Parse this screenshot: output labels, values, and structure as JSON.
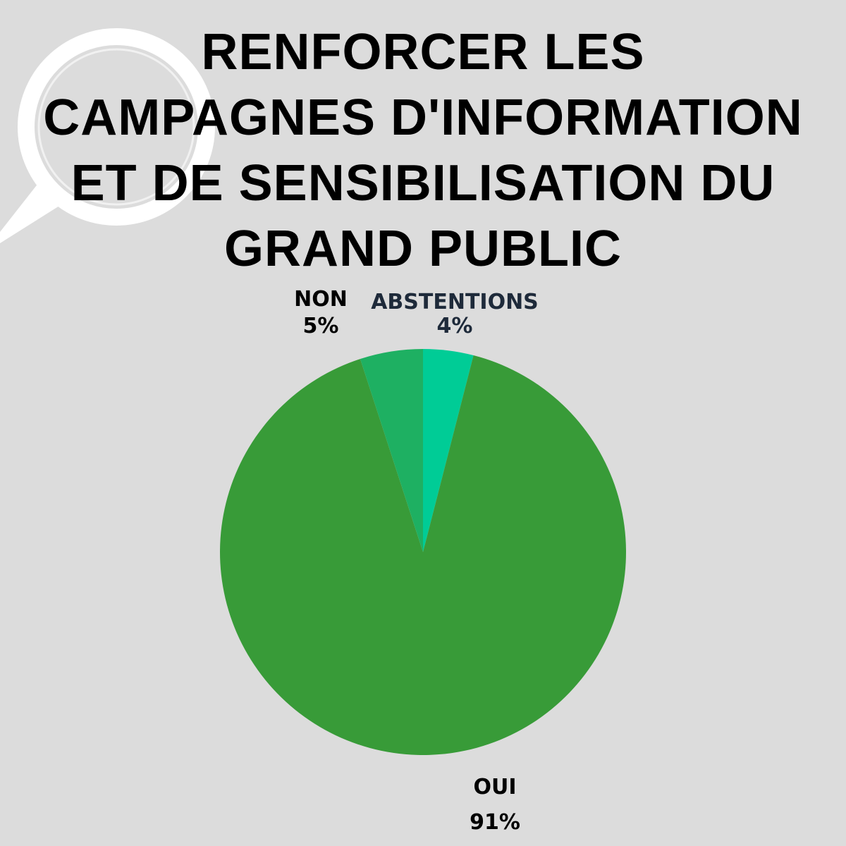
{
  "page": {
    "background": "#dcdcdc",
    "decoration_icon": "magnifying-glass-icon"
  },
  "chart_data": {
    "type": "pie",
    "title": "RENFORCER LES CAMPAGNES D'INFORMATION ET DE SENSIBILISATION DU GRAND PUBLIC",
    "slices": [
      {
        "label": "ABSTENTIONS",
        "value": 4,
        "display": "4%",
        "color": "#00cc96",
        "label_color": "#1e2a3a"
      },
      {
        "label": "OUI",
        "value": 91,
        "display": "91%",
        "color": "#389b38",
        "label_color": "#000000"
      },
      {
        "label": "NON",
        "value": 5,
        "display": "5%",
        "color": "#1eb062",
        "label_color": "#000000"
      }
    ],
    "start_angle": "12 o'clock",
    "direction": "clockwise",
    "legend": "none"
  }
}
